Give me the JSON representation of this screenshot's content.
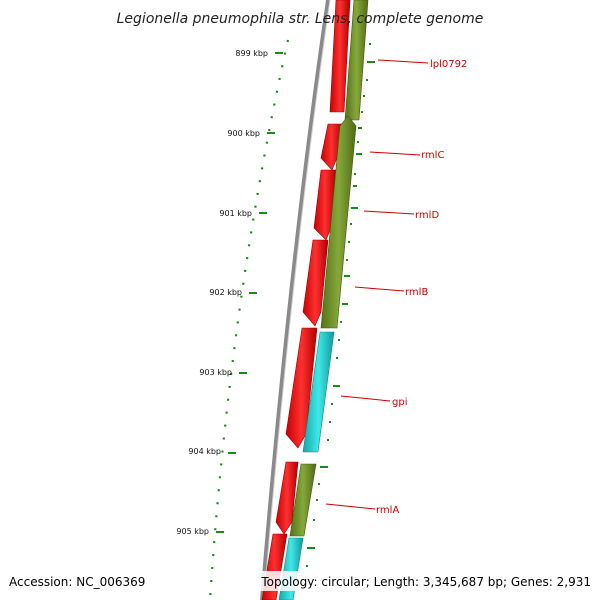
{
  "map": {
    "title": "Legionella pneumophila str. Lens, complete genome",
    "accession": "Accession: NC_006369",
    "summary": "Topology: circular; Length: 3,345,687 bp; Genes: 2,931",
    "kbp_ticks": [
      "899 kbp",
      "900 kbp",
      "901 kbp",
      "902 kbp",
      "903 kbp",
      "904 kbp",
      "905 kbp"
    ],
    "gene_labels": [
      "lpl0792",
      "rmlC",
      "rmlD",
      "rmlB",
      "gpi",
      "rmlA"
    ],
    "colors": {
      "forward_strand": "#ff1a1a",
      "reverse_strand_olive": "#6b8e23",
      "reverse_strand_cyan": "#20d0d0",
      "tick_green": "#1a8a1a",
      "backbone_gray": "#8a8a8a",
      "label_red": "#cc0000"
    }
  }
}
